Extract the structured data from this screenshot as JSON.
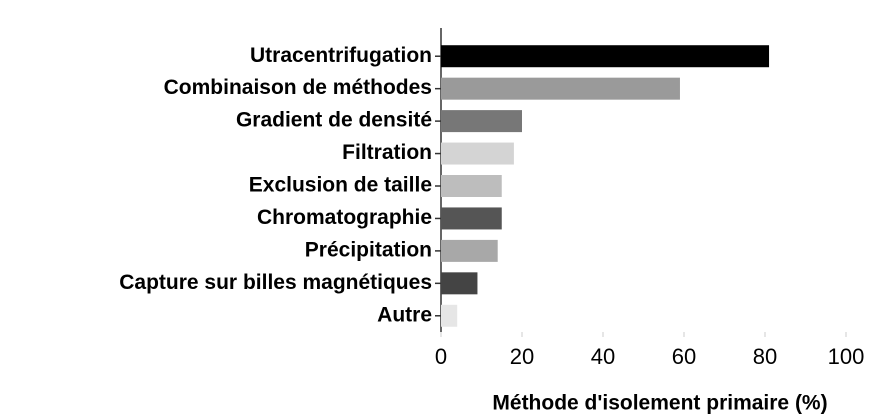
{
  "chart_data": {
    "type": "barh",
    "xlabel": "Méthode d'isolement primaire (%)",
    "categories": [
      "Utracentrifugation",
      "Combinaison de méthodes",
      "Gradient de densité",
      "Filtration",
      "Exclusion de taille",
      "Chromatographie",
      "Précipitation",
      "Capture sur billes magnétiques",
      "Autre"
    ],
    "values": [
      81,
      59,
      20,
      18,
      15,
      15,
      14,
      9,
      4
    ],
    "colors": [
      "#000000",
      "#9a9a9a",
      "#777777",
      "#d4d4d4",
      "#bdbdbd",
      "#555555",
      "#a8a8a8",
      "#444444",
      "#e6e6e6"
    ],
    "xlim": [
      0,
      100
    ],
    "xticks": [
      0,
      20,
      40,
      60,
      80,
      100
    ]
  }
}
